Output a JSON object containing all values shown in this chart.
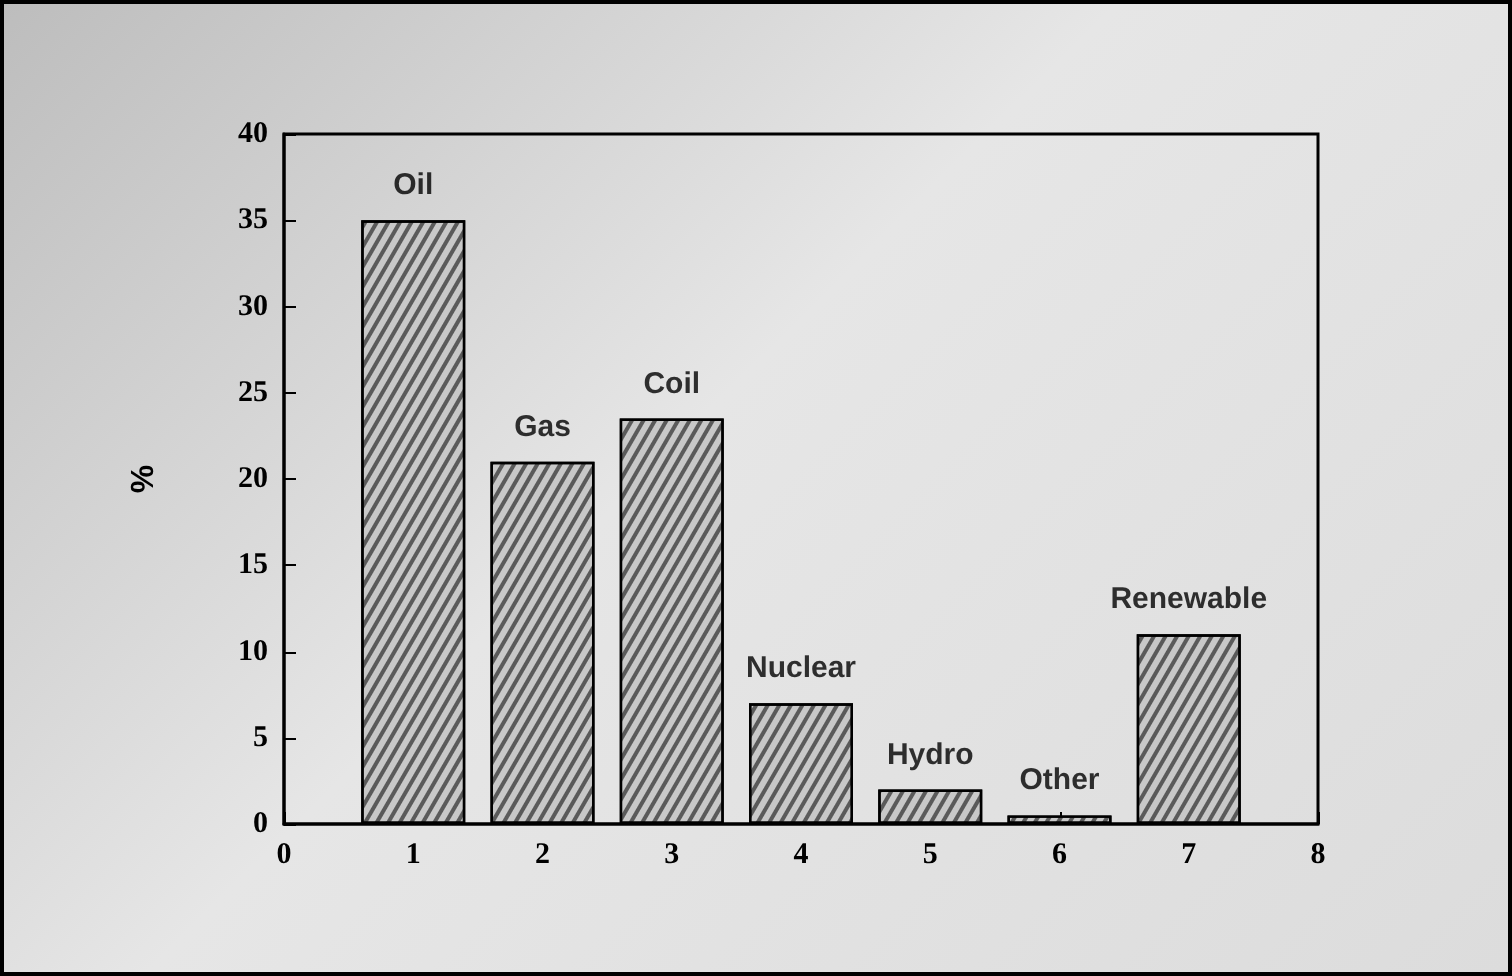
{
  "chart_data": {
    "type": "bar",
    "ylabel": "%",
    "x": [
      1,
      2,
      3,
      4,
      5,
      6,
      7
    ],
    "values": [
      35,
      21,
      23.5,
      7,
      2,
      0.5,
      11
    ],
    "color": "#c8c8c8",
    "xlim": [
      0,
      8
    ],
    "xticks": [
      0,
      1,
      2,
      3,
      4,
      5,
      6,
      7,
      8
    ],
    "ylim": [
      0,
      40
    ],
    "yticks": [
      0,
      5,
      10,
      15,
      20,
      25,
      30,
      35,
      40
    ],
    "annotations": [
      {
        "text": "Oil",
        "x": 1,
        "y": 35
      },
      {
        "text": "Gas",
        "x": 2,
        "y": 21
      },
      {
        "text": "Coil",
        "x": 3,
        "y": 23.5
      },
      {
        "text": "Nuclear",
        "x": 4,
        "y": 7
      },
      {
        "text": "Hydro",
        "x": 5,
        "y": 2
      },
      {
        "text": "Other",
        "x": 6,
        "y": 0.5
      },
      {
        "text": "Renewable",
        "x": 7,
        "y": 11
      }
    ]
  }
}
